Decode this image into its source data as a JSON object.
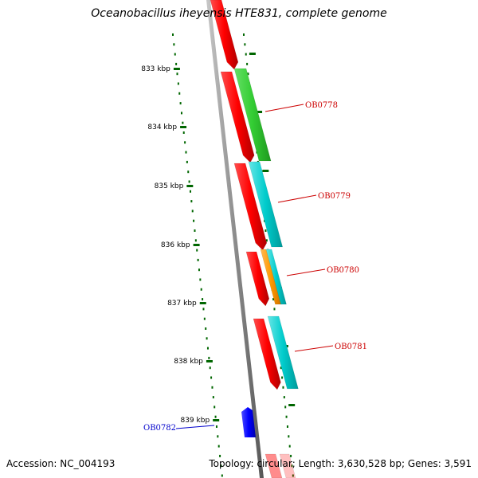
{
  "title": "Oceanobacillus iheyensis HTE831, complete genome",
  "footer": {
    "accession": "Accession: NC_004193",
    "summary": "Topology: circular; Length: 3,630,528 bp; Genes: 3,591"
  },
  "scale_labels": [
    "833 kbp",
    "834 kbp",
    "835 kbp",
    "836 kbp",
    "837 kbp",
    "838 kbp",
    "839 kbp"
  ],
  "gene_labels": [
    "OB0778",
    "OB0779",
    "OB0780",
    "OB0781",
    "OB0782"
  ],
  "colors": {
    "backbone": "#8c8c8c",
    "cds_forward": "#ff0000",
    "cds_reverse": "#0000ff",
    "cog_green": "#33cc33",
    "cog_cyan": "#00cccc",
    "cog_orange": "#ff9900",
    "scale_ticks": "#006600",
    "label_forward": "#cc0000",
    "label_reverse": "#0000cc"
  }
}
